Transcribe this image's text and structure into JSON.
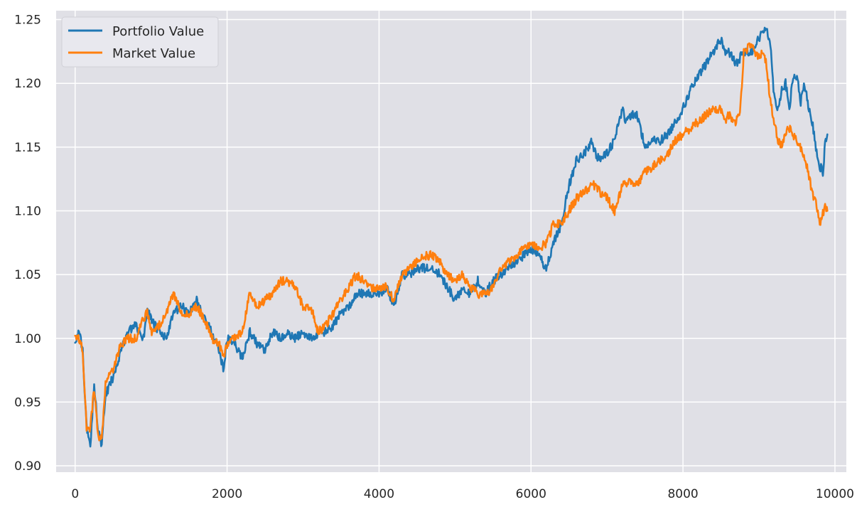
{
  "chart_data": {
    "type": "line",
    "title": "",
    "xlabel": "",
    "ylabel": "",
    "xlim": [
      -250,
      10150
    ],
    "ylim": [
      0.895,
      1.257
    ],
    "grid": true,
    "legend_position": "top-left",
    "x_ticks": [
      0,
      2000,
      4000,
      6000,
      8000,
      10000
    ],
    "x_tick_labels": [
      "0",
      "2000",
      "4000",
      "6000",
      "8000",
      "10000"
    ],
    "y_ticks": [
      0.9,
      0.95,
      1.0,
      1.05,
      1.1,
      1.15,
      1.2,
      1.25
    ],
    "y_tick_labels": [
      "0.90",
      "0.95",
      "1.00",
      "1.05",
      "1.10",
      "1.15",
      "1.20",
      "1.25"
    ],
    "background_color": "#E0E0E6",
    "grid_color": "#FFFFFF",
    "series": [
      {
        "name": "Portfolio Value",
        "color": "#1F77B4",
        "x": [
          0,
          50,
          100,
          150,
          200,
          250,
          300,
          350,
          400,
          500,
          600,
          700,
          800,
          900,
          950,
          1000,
          1100,
          1200,
          1300,
          1400,
          1500,
          1600,
          1700,
          1800,
          1900,
          1950,
          2000,
          2100,
          2200,
          2300,
          2400,
          2500,
          2600,
          2700,
          2800,
          2900,
          3000,
          3100,
          3200,
          3300,
          3400,
          3500,
          3600,
          3700,
          3800,
          3900,
          4000,
          4100,
          4200,
          4300,
          4400,
          4500,
          4600,
          4700,
          4800,
          4900,
          5000,
          5100,
          5200,
          5300,
          5400,
          5500,
          5600,
          5700,
          5800,
          5900,
          6000,
          6100,
          6200,
          6300,
          6400,
          6500,
          6600,
          6700,
          6800,
          6850,
          6900,
          7000,
          7100,
          7200,
          7250,
          7300,
          7400,
          7500,
          7600,
          7700,
          7800,
          7900,
          8000,
          8100,
          8200,
          8300,
          8400,
          8500,
          8550,
          8600,
          8700,
          8800,
          8900,
          9000,
          9050,
          9100,
          9150,
          9200,
          9250,
          9300,
          9350,
          9400,
          9450,
          9500,
          9550,
          9600,
          9650,
          9700,
          9750,
          9800,
          9850,
          9870,
          9900
        ],
        "y": [
          0.998,
          1.005,
          0.99,
          0.93,
          0.915,
          0.965,
          0.93,
          0.915,
          0.955,
          0.97,
          0.99,
          1.005,
          1.01,
          1.0,
          1.025,
          1.015,
          1.005,
          1.0,
          1.02,
          1.025,
          1.02,
          1.03,
          1.015,
          1.005,
          0.99,
          0.975,
          1.0,
          0.995,
          0.985,
          1.005,
          0.995,
          0.99,
          1.005,
          1.0,
          1.003,
          1.0,
          1.005,
          1.0,
          1.003,
          1.005,
          1.01,
          1.02,
          1.025,
          1.035,
          1.035,
          1.035,
          1.035,
          1.04,
          1.025,
          1.05,
          1.05,
          1.055,
          1.055,
          1.055,
          1.05,
          1.04,
          1.03,
          1.04,
          1.035,
          1.045,
          1.035,
          1.045,
          1.05,
          1.055,
          1.06,
          1.065,
          1.07,
          1.065,
          1.055,
          1.075,
          1.09,
          1.12,
          1.14,
          1.145,
          1.155,
          1.145,
          1.14,
          1.145,
          1.155,
          1.18,
          1.17,
          1.175,
          1.175,
          1.15,
          1.155,
          1.155,
          1.16,
          1.17,
          1.18,
          1.195,
          1.205,
          1.215,
          1.225,
          1.235,
          1.225,
          1.225,
          1.215,
          1.225,
          1.225,
          1.235,
          1.24,
          1.245,
          1.23,
          1.19,
          1.18,
          1.195,
          1.2,
          1.18,
          1.205,
          1.205,
          1.185,
          1.2,
          1.18,
          1.17,
          1.15,
          1.135,
          1.13,
          1.155,
          1.16
        ],
        "final_tail": "ends near 1.16"
      },
      {
        "name": "Market Value",
        "color": "#FF7F0E",
        "x": [
          0,
          50,
          100,
          150,
          200,
          250,
          300,
          350,
          400,
          500,
          600,
          700,
          800,
          900,
          950,
          1000,
          1100,
          1200,
          1300,
          1400,
          1500,
          1600,
          1700,
          1800,
          1900,
          1950,
          2000,
          2100,
          2200,
          2300,
          2400,
          2500,
          2600,
          2700,
          2800,
          2900,
          3000,
          3100,
          3200,
          3300,
          3400,
          3500,
          3600,
          3700,
          3800,
          3900,
          4000,
          4100,
          4200,
          4300,
          4400,
          4500,
          4600,
          4700,
          4800,
          4900,
          5000,
          5100,
          5200,
          5300,
          5400,
          5500,
          5600,
          5700,
          5800,
          5900,
          6000,
          6100,
          6200,
          6300,
          6400,
          6500,
          6600,
          6700,
          6800,
          6850,
          6900,
          7000,
          7100,
          7200,
          7250,
          7300,
          7400,
          7500,
          7600,
          7700,
          7800,
          7900,
          8000,
          8100,
          8200,
          8300,
          8400,
          8500,
          8550,
          8600,
          8700,
          8750,
          8800,
          8900,
          9000,
          9050,
          9100,
          9150,
          9200,
          9250,
          9300,
          9350,
          9400,
          9450,
          9500,
          9550,
          9600,
          9650,
          9700,
          9750,
          9800,
          9850,
          9870,
          9900
        ],
        "y": [
          1.0,
          1.0,
          0.99,
          0.93,
          0.93,
          0.96,
          0.925,
          0.92,
          0.965,
          0.975,
          0.995,
          1.0,
          1.0,
          1.015,
          1.02,
          1.005,
          1.01,
          1.02,
          1.035,
          1.02,
          1.02,
          1.025,
          1.015,
          1.0,
          0.995,
          0.985,
          0.995,
          1.0,
          1.005,
          1.035,
          1.025,
          1.03,
          1.035,
          1.045,
          1.045,
          1.04,
          1.025,
          1.025,
          1.005,
          1.01,
          1.02,
          1.03,
          1.04,
          1.05,
          1.045,
          1.04,
          1.04,
          1.04,
          1.03,
          1.05,
          1.055,
          1.06,
          1.065,
          1.065,
          1.06,
          1.05,
          1.045,
          1.05,
          1.04,
          1.035,
          1.035,
          1.04,
          1.055,
          1.06,
          1.065,
          1.07,
          1.075,
          1.07,
          1.075,
          1.09,
          1.09,
          1.1,
          1.11,
          1.115,
          1.12,
          1.12,
          1.115,
          1.11,
          1.1,
          1.12,
          1.12,
          1.125,
          1.12,
          1.13,
          1.135,
          1.14,
          1.145,
          1.155,
          1.16,
          1.165,
          1.17,
          1.175,
          1.18,
          1.18,
          1.17,
          1.175,
          1.17,
          1.175,
          1.225,
          1.23,
          1.22,
          1.225,
          1.215,
          1.185,
          1.17,
          1.155,
          1.15,
          1.16,
          1.165,
          1.16,
          1.155,
          1.15,
          1.14,
          1.13,
          1.115,
          1.105,
          1.09,
          1.1,
          1.105,
          1.1
        ],
        "final_tail": "ends near 1.10"
      }
    ]
  }
}
